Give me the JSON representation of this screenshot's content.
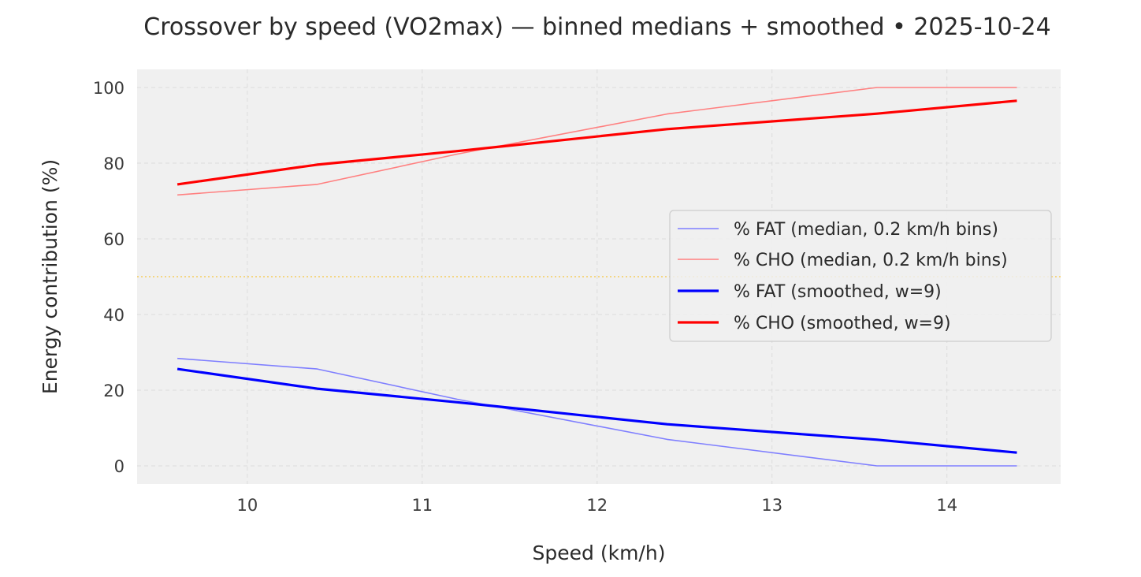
{
  "chart_data": {
    "type": "line",
    "title": "Crossover by speed (VO2max) — binned medians + smoothed • 2025-10-24",
    "xlabel": "Speed (km/h)",
    "ylabel": "Energy contribution (%)",
    "xlim": [
      9.37,
      14.65
    ],
    "ylim": [
      -4.8,
      104.8
    ],
    "xticks": [
      10,
      11,
      12,
      13,
      14
    ],
    "yticks": [
      0,
      20,
      40,
      60,
      80,
      100
    ],
    "grid": true,
    "reference_line": {
      "y": 50,
      "color": "#f5c542",
      "style": "dotted"
    },
    "legend_position": "center-right",
    "series": [
      {
        "name": "% FAT (median, 0.2 km/h bins)",
        "color": "#7f7fff",
        "width": 1.6,
        "x": [
          9.6,
          10.4,
          11.2,
          12.4,
          13.6,
          14.4
        ],
        "y": [
          28.4,
          25.6,
          17.6,
          7.0,
          0.0,
          0.0
        ]
      },
      {
        "name": "% CHO (median, 0.2 km/h bins)",
        "color": "#ff8080",
        "width": 1.6,
        "x": [
          9.6,
          10.4,
          11.2,
          12.4,
          13.6,
          14.4
        ],
        "y": [
          71.6,
          74.4,
          82.4,
          93.0,
          100.0,
          100.0
        ]
      },
      {
        "name": "% FAT (smoothed, w=9)",
        "color": "#0000ff",
        "width": 3.2,
        "x": [
          9.6,
          10.4,
          11.2,
          12.4,
          13.6,
          14.4
        ],
        "y": [
          25.6,
          20.4,
          16.8,
          11.0,
          6.9,
          3.5
        ]
      },
      {
        "name": "% CHO (smoothed, w=9)",
        "color": "#ff0000",
        "width": 3.2,
        "x": [
          9.6,
          10.4,
          11.2,
          12.4,
          13.6,
          14.4
        ],
        "y": [
          74.4,
          79.6,
          83.2,
          89.0,
          93.1,
          96.5
        ]
      }
    ]
  }
}
